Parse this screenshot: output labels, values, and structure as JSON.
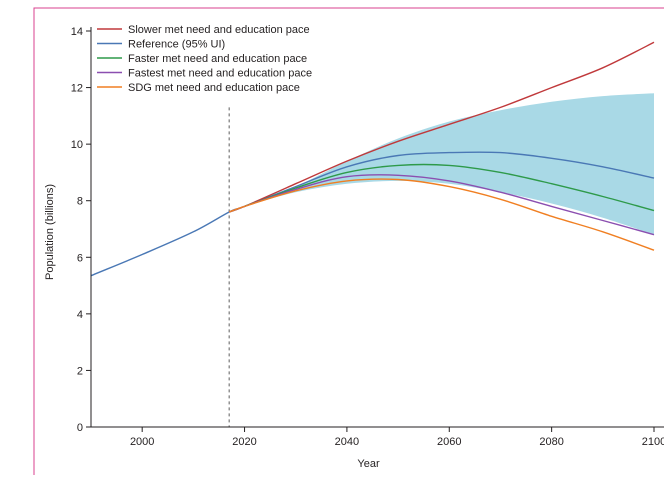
{
  "chart_data": {
    "type": "line",
    "xlabel": "Year",
    "ylabel": "Population (billions)",
    "xlim": [
      1990,
      2100
    ],
    "ylim": [
      0,
      14
    ],
    "x_ticks": [
      2000,
      2020,
      2040,
      2060,
      2080,
      2100
    ],
    "y_ticks": [
      0,
      2,
      4,
      6,
      8,
      10,
      12,
      14
    ],
    "x_tick_labels": [
      "2000",
      "2020",
      "2040",
      "2060",
      "2080",
      "2100"
    ],
    "y_tick_labels": [
      "0",
      "2",
      "4",
      "6",
      "8",
      "10",
      "12",
      "14"
    ],
    "grid": false,
    "legend_position": "top-left",
    "reference_line": {
      "x": 2017,
      "style": "dashed",
      "color": "#777777"
    },
    "frame_color": "#d8428f",
    "uncertainty_band": {
      "series": "Reference (95% UI)",
      "color": "#a9d9e6",
      "x": [
        2017,
        2020,
        2030,
        2040,
        2050,
        2060,
        2070,
        2080,
        2090,
        2100
      ],
      "lower": [
        7.6,
        7.8,
        8.3,
        8.6,
        8.7,
        8.6,
        8.3,
        7.9,
        7.4,
        6.8
      ],
      "upper": [
        7.6,
        7.8,
        8.5,
        9.4,
        10.2,
        10.8,
        11.2,
        11.5,
        11.7,
        11.8
      ]
    },
    "series": [
      {
        "name": "Slower met need and education pace",
        "color": "#c0393b",
        "x": [
          2017,
          2020,
          2030,
          2040,
          2050,
          2060,
          2070,
          2080,
          2090,
          2100
        ],
        "values": [
          7.6,
          7.8,
          8.6,
          9.4,
          10.1,
          10.7,
          11.3,
          12.0,
          12.7,
          13.6
        ]
      },
      {
        "name": "Reference (95% UI)",
        "color": "#4a78b5",
        "x": [
          1990,
          2000,
          2010,
          2017,
          2020,
          2030,
          2040,
          2050,
          2060,
          2070,
          2080,
          2090,
          2100
        ],
        "values": [
          5.35,
          6.1,
          6.9,
          7.6,
          7.8,
          8.5,
          9.2,
          9.6,
          9.7,
          9.7,
          9.5,
          9.2,
          8.8
        ]
      },
      {
        "name": "Faster met need and education pace",
        "color": "#2e9a4a",
        "x": [
          2017,
          2020,
          2030,
          2040,
          2050,
          2060,
          2070,
          2080,
          2090,
          2100
        ],
        "values": [
          7.6,
          7.8,
          8.45,
          9.0,
          9.25,
          9.25,
          9.0,
          8.6,
          8.15,
          7.65
        ]
      },
      {
        "name": "Fastest met need and education pace",
        "color": "#8b4fb0",
        "x": [
          2017,
          2020,
          2030,
          2040,
          2050,
          2060,
          2070,
          2080,
          2090,
          2100
        ],
        "values": [
          7.6,
          7.8,
          8.4,
          8.85,
          8.9,
          8.7,
          8.3,
          7.8,
          7.3,
          6.8
        ]
      },
      {
        "name": "SDG met need and education pace",
        "color": "#f07f22",
        "x": [
          2017,
          2020,
          2030,
          2040,
          2050,
          2060,
          2070,
          2080,
          2090,
          2100
        ],
        "values": [
          7.6,
          7.8,
          8.35,
          8.7,
          8.75,
          8.5,
          8.05,
          7.45,
          6.9,
          6.25
        ]
      }
    ]
  }
}
